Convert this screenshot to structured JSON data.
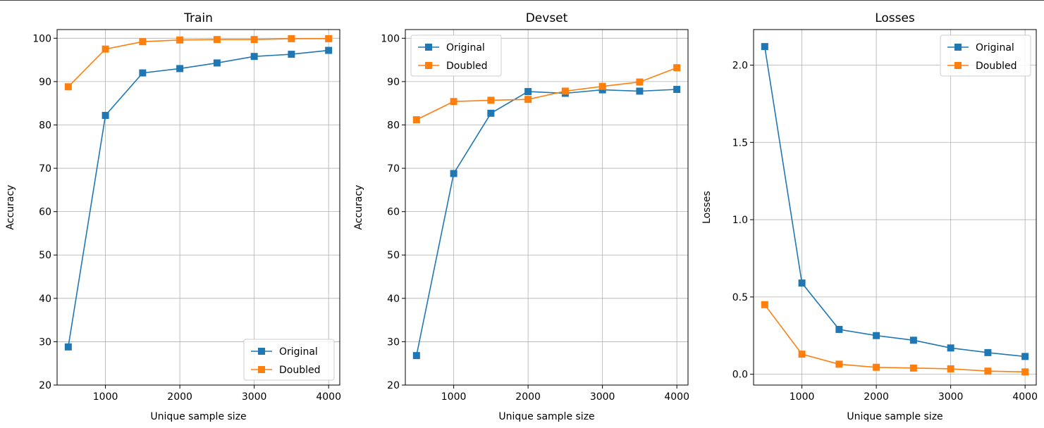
{
  "figure": {
    "colors": {
      "original": "#1f77b4",
      "doubled": "#ff7f0e",
      "grid": "#b0b0b0"
    }
  },
  "chart_data": [
    {
      "type": "line",
      "title": "Train",
      "xlabel": "Unique sample size",
      "ylabel": "Accuracy",
      "x": [
        500,
        1000,
        1500,
        2000,
        2500,
        3000,
        3500,
        4000
      ],
      "xlim": [
        350,
        4150
      ],
      "ylim": [
        20,
        102
      ],
      "xticks": [
        1000,
        2000,
        3000,
        4000
      ],
      "yticks": [
        20,
        30,
        40,
        50,
        60,
        70,
        80,
        90,
        100
      ],
      "ytick_labels": [
        "20",
        "30",
        "40",
        "50",
        "60",
        "70",
        "80",
        "90",
        "100"
      ],
      "grid": true,
      "legend_position": "lower-right",
      "series": [
        {
          "name": "Original",
          "color": "#1f77b4",
          "marker": "square",
          "values": [
            28.8,
            82.2,
            92.0,
            93.0,
            94.3,
            95.8,
            96.3,
            97.2
          ]
        },
        {
          "name": "Doubled",
          "color": "#ff7f0e",
          "marker": "square",
          "values": [
            88.8,
            97.5,
            99.2,
            99.6,
            99.7,
            99.7,
            99.9,
            99.9
          ]
        }
      ]
    },
    {
      "type": "line",
      "title": "Devset",
      "xlabel": "Unique sample size",
      "ylabel": "Accuracy",
      "x": [
        500,
        1000,
        1500,
        2000,
        2500,
        3000,
        3500,
        4000
      ],
      "xlim": [
        350,
        4150
      ],
      "ylim": [
        20,
        102
      ],
      "xticks": [
        1000,
        2000,
        3000,
        4000
      ],
      "yticks": [
        20,
        30,
        40,
        50,
        60,
        70,
        80,
        90,
        100
      ],
      "ytick_labels": [
        "20",
        "30",
        "40",
        "50",
        "60",
        "70",
        "80",
        "90",
        "100"
      ],
      "grid": true,
      "legend_position": "upper-left",
      "series": [
        {
          "name": "Original",
          "color": "#1f77b4",
          "marker": "square",
          "values": [
            26.8,
            68.8,
            82.7,
            87.7,
            87.3,
            88.1,
            87.8,
            88.2
          ]
        },
        {
          "name": "Doubled",
          "color": "#ff7f0e",
          "marker": "square",
          "values": [
            81.2,
            85.4,
            85.7,
            85.9,
            87.8,
            88.9,
            89.9,
            93.2
          ]
        }
      ]
    },
    {
      "type": "line",
      "title": "Losses",
      "xlabel": "Unique sample size",
      "ylabel": "Losses",
      "x": [
        500,
        1000,
        1500,
        2000,
        2500,
        3000,
        3500,
        4000
      ],
      "xlim": [
        350,
        4150
      ],
      "ylim": [
        -0.07,
        2.23
      ],
      "xticks": [
        1000,
        2000,
        3000,
        4000
      ],
      "yticks": [
        0.0,
        0.5,
        1.0,
        1.5,
        2.0
      ],
      "ytick_labels": [
        "0.0",
        "0.5",
        "1.0",
        "1.5",
        "2.0"
      ],
      "grid": true,
      "legend_position": "upper-right",
      "series": [
        {
          "name": "Original",
          "color": "#1f77b4",
          "marker": "square",
          "values": [
            2.12,
            0.59,
            0.29,
            0.25,
            0.22,
            0.17,
            0.14,
            0.115
          ]
        },
        {
          "name": "Doubled",
          "color": "#ff7f0e",
          "marker": "square",
          "values": [
            0.45,
            0.13,
            0.065,
            0.045,
            0.04,
            0.035,
            0.02,
            0.015
          ]
        }
      ]
    }
  ]
}
